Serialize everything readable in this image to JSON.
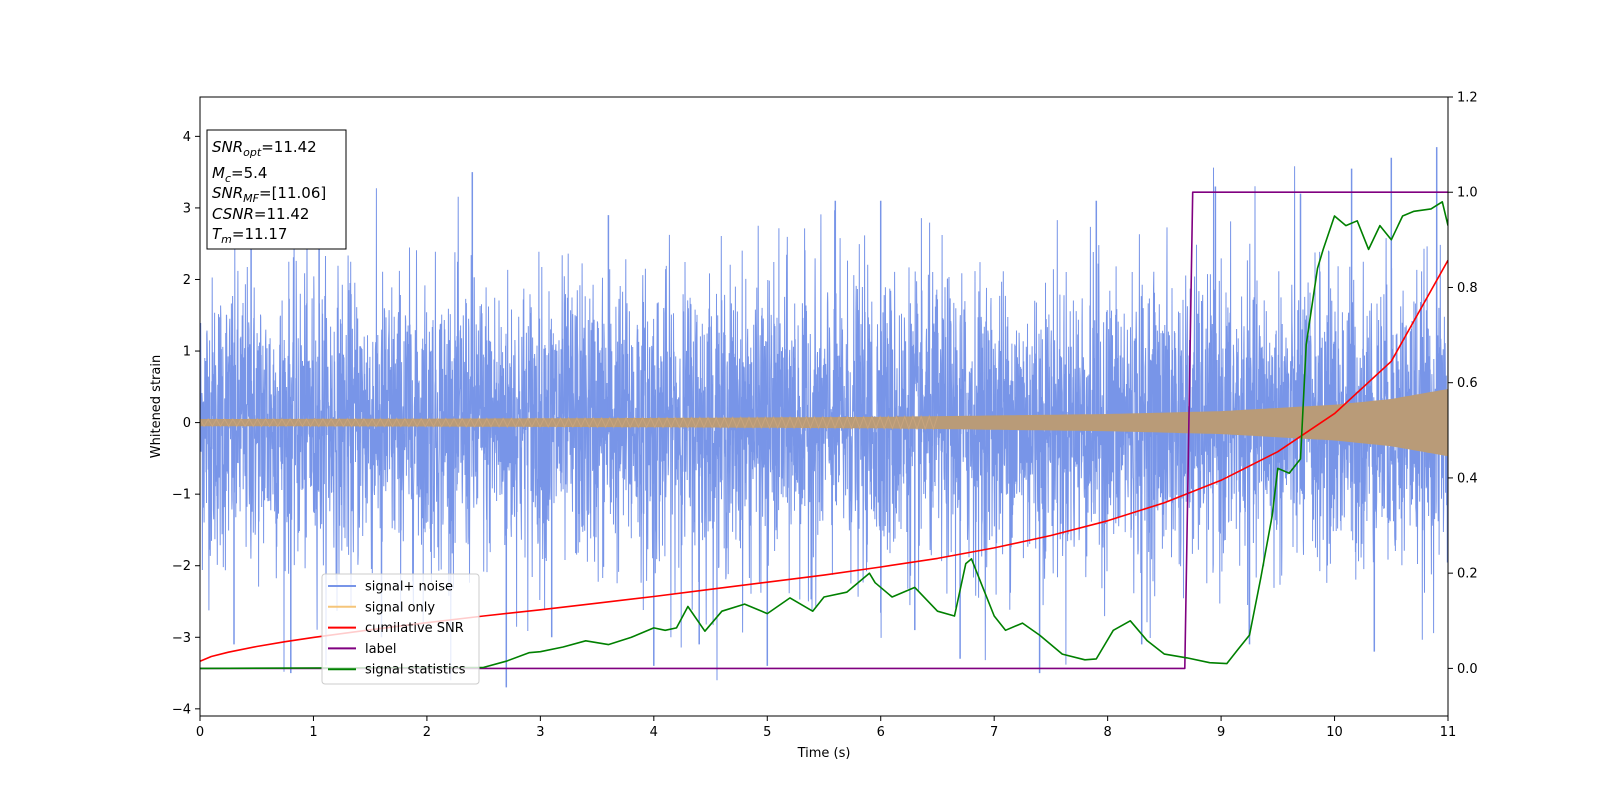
{
  "chart_data": {
    "type": "line",
    "xlabel": "Time (s)",
    "ylabel": "Whitened strain",
    "xlim": [
      0,
      11
    ],
    "ylim": [
      -4.1,
      4.55
    ],
    "y2lim": [
      -0.1,
      1.2
    ],
    "x_ticks": [
      0,
      1,
      2,
      3,
      4,
      5,
      6,
      7,
      8,
      9,
      10,
      11
    ],
    "y_ticks": [
      -4,
      -3,
      -2,
      -1,
      0,
      1,
      2,
      3,
      4
    ],
    "y_tick_labels": [
      "−4",
      "−3",
      "−2",
      "−1",
      "0",
      "1",
      "2",
      "3",
      "4"
    ],
    "y2_ticks": [
      0.0,
      0.2,
      0.4,
      0.6,
      0.8,
      1.0,
      1.2
    ],
    "y2_tick_labels": [
      "0.0",
      "0.2",
      "0.4",
      "0.6",
      "0.8",
      "1.0",
      "1.2"
    ],
    "legend_position": "lower-left",
    "legend": [
      "signal+ noise",
      "signal only",
      "cumilative SNR",
      "label",
      "signal statistics"
    ],
    "info_box": {
      "snr_opt_label": "SNR",
      "snr_opt_sub": "opt",
      "snr_opt_value": "=11.42",
      "mc_label": "M",
      "mc_sub": "c",
      "mc_value": "=5.4",
      "snr_mf_label": "SNR",
      "snr_mf_sub": "MF",
      "snr_mf_value": "=[11.06]",
      "csnr_label": "CSNR",
      "csnr_value": "=11.42",
      "tm_label": "T",
      "tm_sub": "m",
      "tm_value": "=11.17"
    },
    "series": [
      {
        "name": "signal+ noise",
        "axis": "left",
        "color": "#7895e8",
        "kind": "noise_band",
        "std": 1.0,
        "spikes": [
          [
            0.3,
            -3.1
          ],
          [
            0.45,
            3.2
          ],
          [
            0.8,
            -3.5
          ],
          [
            1.05,
            3.0
          ],
          [
            1.6,
            -3.0
          ],
          [
            2.4,
            3.5
          ],
          [
            2.7,
            -3.7
          ],
          [
            3.1,
            -3.0
          ],
          [
            3.6,
            2.9
          ],
          [
            4.0,
            -3.4
          ],
          [
            4.4,
            -3.1
          ],
          [
            5.0,
            -3.4
          ],
          [
            5.6,
            3.1
          ],
          [
            6.0,
            3.1
          ],
          [
            6.3,
            -2.9
          ],
          [
            6.7,
            -3.3
          ],
          [
            7.4,
            -3.5
          ],
          [
            7.9,
            3.1
          ],
          [
            8.3,
            -3.1
          ],
          [
            8.95,
            3.3
          ],
          [
            9.25,
            -3.1
          ],
          [
            9.7,
            3.2
          ],
          [
            10.15,
            3.55
          ],
          [
            10.35,
            -3.2
          ],
          [
            10.5,
            3.7
          ],
          [
            10.9,
            3.85
          ]
        ]
      },
      {
        "name": "signal only",
        "axis": "left",
        "color": "#f5c57a",
        "kind": "chirp_envelope",
        "amplitude_x": [
          0,
          2,
          4,
          6,
          8,
          9,
          10,
          10.5,
          11
        ],
        "amplitude_y": [
          0.05,
          0.055,
          0.065,
          0.08,
          0.12,
          0.16,
          0.25,
          0.33,
          0.47
        ]
      },
      {
        "name": "cumilative SNR",
        "axis": "right",
        "color": "#ff0000",
        "x": [
          0,
          0.1,
          0.25,
          0.5,
          0.75,
          1,
          1.5,
          2,
          2.5,
          3,
          3.5,
          4,
          4.5,
          5,
          5.5,
          6,
          6.5,
          7,
          7.5,
          8,
          8.5,
          9,
          9.5,
          10,
          10.5,
          11
        ],
        "y": [
          0.015,
          0.025,
          0.034,
          0.046,
          0.056,
          0.065,
          0.081,
          0.096,
          0.11,
          0.123,
          0.137,
          0.151,
          0.166,
          0.181,
          0.196,
          0.213,
          0.231,
          0.253,
          0.279,
          0.31,
          0.348,
          0.395,
          0.455,
          0.535,
          0.645,
          0.857
        ]
      },
      {
        "name": "label",
        "axis": "right",
        "color": "#800080",
        "x": [
          0,
          8.68,
          8.75,
          11
        ],
        "y": [
          0.0,
          0.0,
          1.0,
          1.0
        ]
      },
      {
        "name": "signal statistics",
        "axis": "right",
        "color": "#008000",
        "x": [
          0,
          2.5,
          2.7,
          2.9,
          3.0,
          3.2,
          3.4,
          3.6,
          3.8,
          4.0,
          4.1,
          4.2,
          4.3,
          4.45,
          4.6,
          4.8,
          5.0,
          5.2,
          5.4,
          5.5,
          5.7,
          5.9,
          5.95,
          6.1,
          6.3,
          6.5,
          6.65,
          6.75,
          6.8,
          6.9,
          7.0,
          7.1,
          7.25,
          7.4,
          7.6,
          7.8,
          7.9,
          8.05,
          8.2,
          8.35,
          8.5,
          8.7,
          8.9,
          9.05,
          9.15,
          9.25,
          9.35,
          9.45,
          9.5,
          9.6,
          9.7,
          9.75,
          9.85,
          9.9,
          10.0,
          10.1,
          10.2,
          10.3,
          10.4,
          10.5,
          10.6,
          10.7,
          10.85,
          10.95,
          11.0
        ],
        "y": [
          0.0,
          0.002,
          0.015,
          0.033,
          0.035,
          0.045,
          0.058,
          0.05,
          0.065,
          0.085,
          0.08,
          0.085,
          0.13,
          0.078,
          0.12,
          0.135,
          0.115,
          0.148,
          0.12,
          0.15,
          0.16,
          0.2,
          0.18,
          0.15,
          0.17,
          0.12,
          0.11,
          0.22,
          0.23,
          0.17,
          0.11,
          0.08,
          0.095,
          0.07,
          0.03,
          0.018,
          0.02,
          0.08,
          0.1,
          0.058,
          0.03,
          0.022,
          0.012,
          0.01,
          0.04,
          0.07,
          0.19,
          0.32,
          0.42,
          0.41,
          0.44,
          0.68,
          0.84,
          0.88,
          0.95,
          0.93,
          0.94,
          0.88,
          0.93,
          0.9,
          0.95,
          0.96,
          0.965,
          0.98,
          0.93
        ]
      }
    ]
  }
}
